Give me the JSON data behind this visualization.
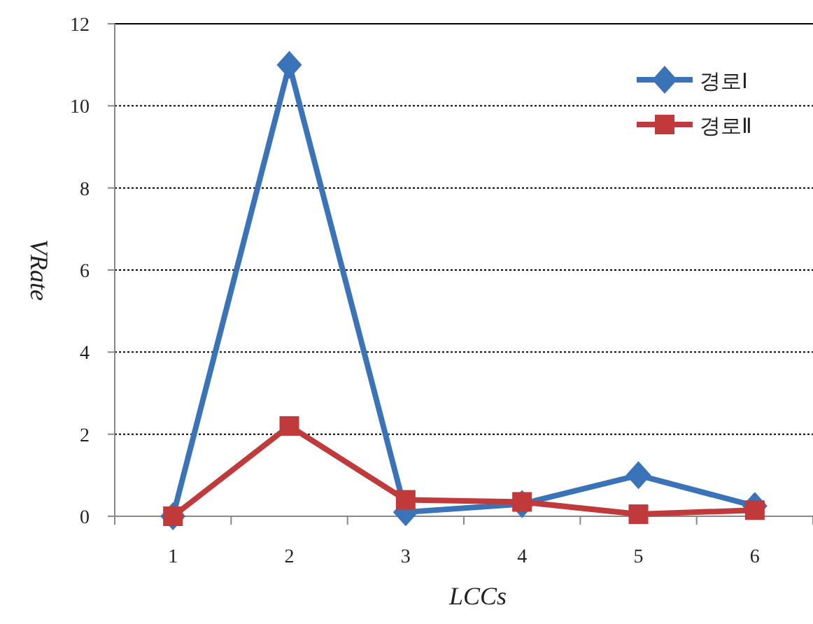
{
  "chart_data": {
    "type": "line",
    "xlabel": "LCCs",
    "ylabel": "VRate",
    "categories": [
      "1",
      "2",
      "3",
      "4",
      "5",
      "6"
    ],
    "series": [
      {
        "name": "경로Ⅰ",
        "color": "#3a73b8",
        "marker": "diamond",
        "values": [
          0,
          11,
          0.1,
          0.3,
          1.0,
          0.25
        ]
      },
      {
        "name": "경로Ⅱ",
        "color": "#c0393b",
        "marker": "square",
        "values": [
          0,
          2.2,
          0.4,
          0.35,
          0.05,
          0.15
        ]
      }
    ],
    "ylim": [
      0,
      12
    ],
    "yticks": [
      0,
      2,
      4,
      6,
      8,
      10,
      12
    ],
    "grid": "y",
    "legend": "top right",
    "line_style": "solid"
  }
}
